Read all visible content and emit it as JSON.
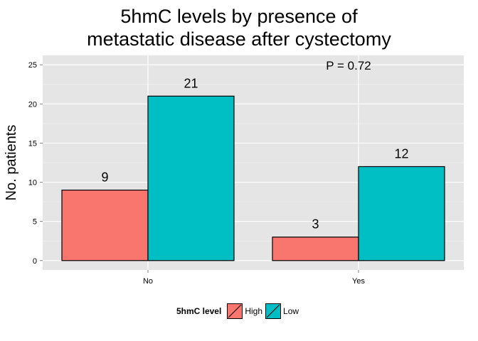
{
  "chart_data": {
    "type": "bar",
    "title": [
      "5hmC levels by presence of",
      "metastatic disease after cystectomy"
    ],
    "xlabel": "",
    "ylabel": "No. patients",
    "categories": [
      "No",
      "Yes"
    ],
    "series": [
      {
        "name": "High",
        "values": [
          9,
          3
        ],
        "color": "#F8766D"
      },
      {
        "name": "Low",
        "values": [
          21,
          12
        ],
        "color": "#00BFC4"
      }
    ],
    "ylim": [
      -1.2,
      26.2
    ],
    "yticks": [
      0,
      5,
      10,
      15,
      20,
      25
    ],
    "annotation": "P = 0.72",
    "legend": {
      "title": "5hmC level",
      "position": "bottom"
    },
    "grid": true,
    "background": "#E5E5E5"
  }
}
